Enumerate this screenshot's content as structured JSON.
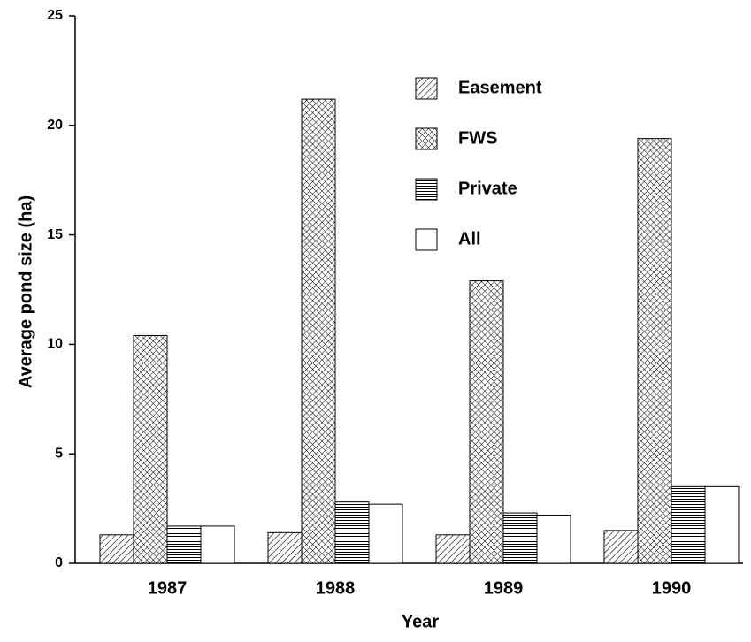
{
  "chart_data": {
    "type": "bar",
    "categories": [
      "1987",
      "1988",
      "1989",
      "1990"
    ],
    "series": [
      {
        "name": "Easement",
        "pattern": "diagonal",
        "color": "#000000",
        "values": [
          1.3,
          1.4,
          1.3,
          1.5
        ]
      },
      {
        "name": "FWS",
        "pattern": "crosshatch",
        "color": "#000000",
        "values": [
          10.4,
          21.2,
          12.9,
          19.4
        ]
      },
      {
        "name": "Private",
        "pattern": "horizontal",
        "color": "#000000",
        "values": [
          1.7,
          2.8,
          2.3,
          3.5
        ]
      },
      {
        "name": "All",
        "pattern": "none",
        "color": "#000000",
        "values": [
          1.7,
          2.7,
          2.2,
          3.5
        ]
      }
    ],
    "xlabel": "Year",
    "ylabel": "Average pond size (ha)",
    "ylim": [
      0,
      25
    ],
    "yticks": [
      0,
      5,
      10,
      15,
      20,
      25
    ],
    "grid": false
  }
}
